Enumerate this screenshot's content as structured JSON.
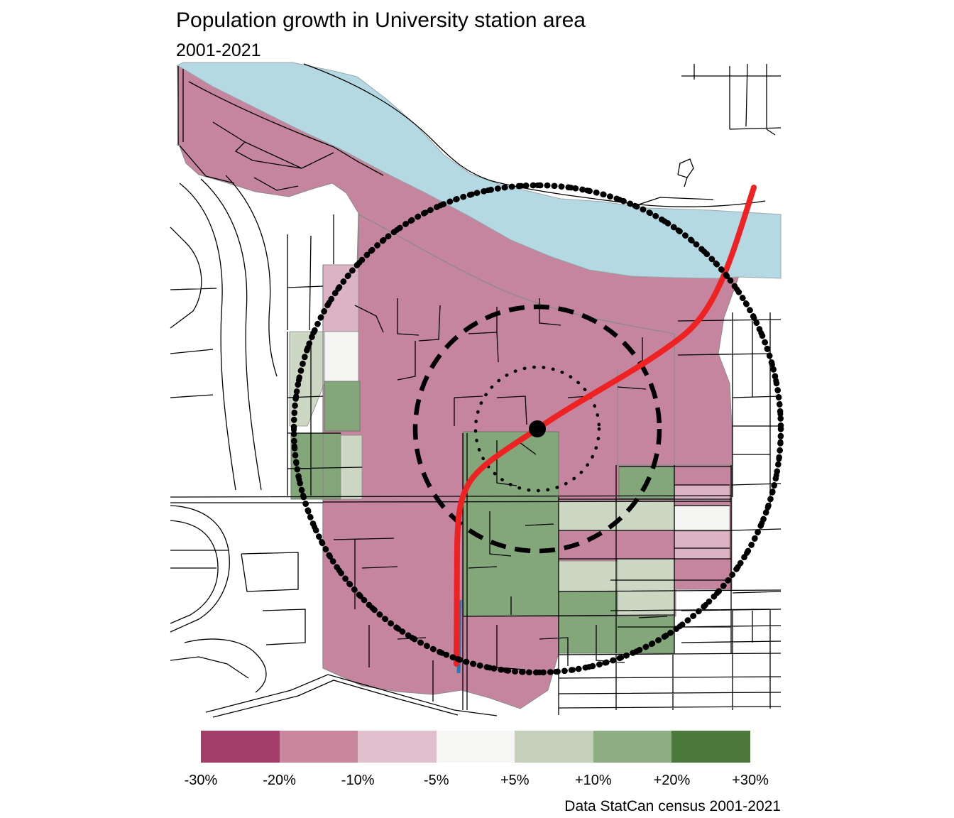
{
  "title": "Population growth in University station area",
  "subtitle": "2001-2021",
  "caption": "Data StatCan census 2001-2021",
  "legend": {
    "edge_labels": [
      "-30%",
      "-20%",
      "-10%",
      "-5%",
      "+5%",
      "+10%",
      "+20%",
      "+30%"
    ],
    "swatches": [
      {
        "range": "-30% to -20%",
        "color": "#a43d69"
      },
      {
        "range": "-20% to -10%",
        "color": "#c9879d"
      },
      {
        "range": "-10% to -5%",
        "color": "#dfc0cc"
      },
      {
        "range": "-5% to +5%",
        "color": "#f6f6f5"
      },
      {
        "range": "+5% to +10%",
        "color": "#c4d0ba"
      },
      {
        "range": "+10% to +20%",
        "color": "#8ead83"
      },
      {
        "range": "+20% to +30%",
        "color": "#4b7a3c"
      }
    ]
  },
  "map": {
    "palette": {
      "river": "#b5d9e3",
      "map_pink": "#c6859f",
      "map_pink_light": "#dcb3c4",
      "map_neutral": "#f5f5f3",
      "map_green_pale": "#ccd8c4",
      "map_green": "#83a77a",
      "transit_line_red": "#ee2222",
      "secondary_line_blue": "#2579b5",
      "station_dot": "#000000",
      "ring_color": "#000000",
      "road_color": "#000000"
    },
    "rings": {
      "inner_style": "dotted",
      "middle_style": "dashed",
      "outer_style": "beaded"
    }
  }
}
